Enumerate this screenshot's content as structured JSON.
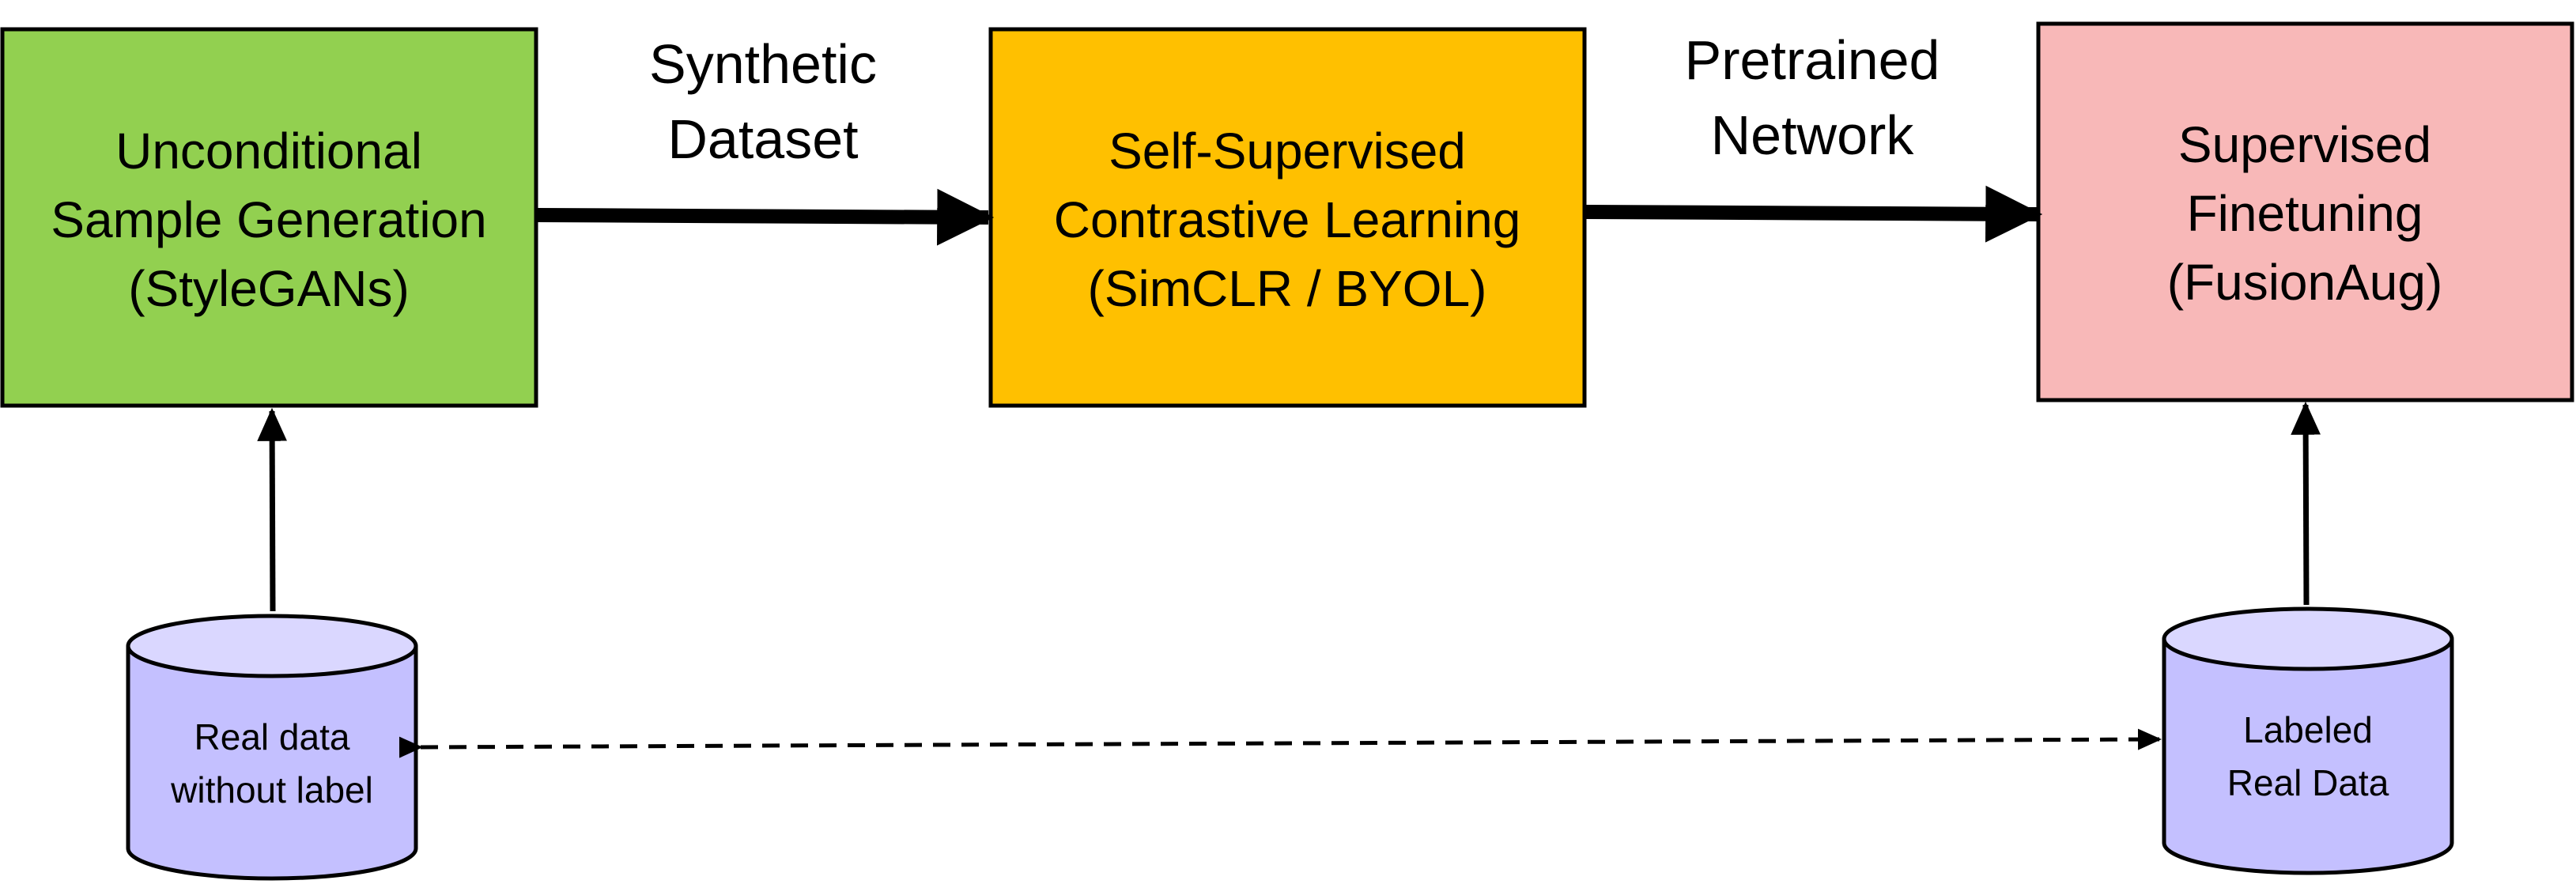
{
  "diagram": {
    "colors": {
      "generation": "#92d050",
      "contrastive": "#ffc000",
      "finetuning": "#f8b8b8",
      "database": "#c4c0ff",
      "database_top": "#dad7ff",
      "stroke": "#000000"
    },
    "boxes": {
      "generation": {
        "lines": [
          "Unconditional",
          "Sample Generation",
          "(StyleGANs)"
        ]
      },
      "contrastive": {
        "lines": [
          "Self-Supervised",
          "Contrastive Learning",
          "(SimCLR / BYOL)"
        ]
      },
      "finetuning": {
        "lines": [
          "Supervised",
          "Finetuning",
          "(FusionAug)"
        ]
      }
    },
    "edges": {
      "synthetic_dataset": {
        "lines": [
          "Synthetic",
          "Dataset"
        ]
      },
      "pretrained_network": {
        "lines": [
          "Pretrained",
          "Network"
        ]
      }
    },
    "databases": {
      "unlabeled": {
        "lines": [
          "Real data",
          "without label"
        ]
      },
      "labeled": {
        "lines": [
          "Labeled",
          "Real Data"
        ]
      }
    }
  }
}
